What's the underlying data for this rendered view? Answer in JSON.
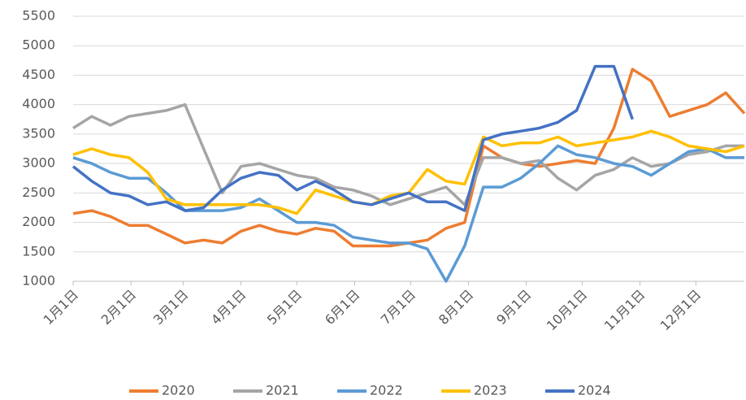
{
  "chart_data": {
    "type": "line",
    "x": [
      0,
      10,
      20,
      30,
      40,
      50,
      60,
      70,
      80,
      90,
      100,
      110,
      120,
      130,
      140,
      150,
      160,
      170,
      180,
      190,
      200,
      210,
      220,
      230,
      240,
      250,
      260,
      270,
      280,
      290,
      300,
      310,
      320,
      330,
      340,
      350,
      360
    ],
    "xlim": [
      0,
      360
    ],
    "xticks": [
      {
        "value": 0,
        "label": "1月1日"
      },
      {
        "value": 31,
        "label": "2月1日"
      },
      {
        "value": 59,
        "label": "3月1日"
      },
      {
        "value": 90,
        "label": "4月1日"
      },
      {
        "value": 120,
        "label": "5月1日"
      },
      {
        "value": 151,
        "label": "6月1日"
      },
      {
        "value": 181,
        "label": "7月1日"
      },
      {
        "value": 212,
        "label": "8月1日"
      },
      {
        "value": 243,
        "label": "9月1日"
      },
      {
        "value": 273,
        "label": "10月1日"
      },
      {
        "value": 304,
        "label": "11月1日"
      },
      {
        "value": 334,
        "label": "12月1日"
      }
    ],
    "ylim": [
      1000,
      5500
    ],
    "yticks": [
      1000,
      1500,
      2000,
      2500,
      3000,
      3500,
      4000,
      4500,
      5000,
      5500
    ],
    "grid": true,
    "legend": "bottom",
    "series": [
      {
        "name": "2020",
        "color": "#ed7d31",
        "values": [
          2150,
          2200,
          2100,
          1950,
          1950,
          1800,
          1650,
          1700,
          1650,
          1850,
          1950,
          1850,
          1800,
          1900,
          1850,
          1600,
          1600,
          1600,
          1650,
          1700,
          1900,
          2000,
          3300,
          3100,
          3000,
          2950,
          3000,
          3050,
          3000,
          3600,
          4600,
          4400,
          3800,
          3900,
          4000,
          4200,
          3850
        ]
      },
      {
        "name": "2021",
        "color": "#a5a5a5",
        "values": [
          3600,
          3800,
          3650,
          3800,
          3850,
          3900,
          4000,
          3250,
          2500,
          2950,
          3000,
          2900,
          2800,
          2750,
          2600,
          2550,
          2450,
          2300,
          2400,
          2500,
          2600,
          2300,
          3100,
          3100,
          3000,
          3050,
          2750,
          2550,
          2800,
          2900,
          3100,
          2950,
          3000,
          3150,
          3200,
          3300,
          3300
        ]
      },
      {
        "name": "2022",
        "color": "#5b9bd5",
        "values": [
          3100,
          3000,
          2850,
          2750,
          2750,
          2500,
          2200,
          2200,
          2200,
          2250,
          2400,
          2200,
          2000,
          2000,
          1950,
          1750,
          1700,
          1650,
          1650,
          1550,
          1000,
          1600,
          2600,
          2600,
          2750,
          3000,
          3300,
          3150,
          3100,
          3000,
          2950,
          2800,
          3000,
          3200,
          3250,
          3100,
          3100
        ]
      },
      {
        "name": "2023",
        "color": "#ffc000",
        "values": [
          3150,
          3250,
          3150,
          3100,
          2850,
          2400,
          2300,
          2300,
          2300,
          2300,
          2300,
          2250,
          2150,
          2550,
          2450,
          2350,
          2300,
          2450,
          2500,
          2900,
          2700,
          2650,
          3450,
          3300,
          3350,
          3350,
          3450,
          3300,
          3350,
          3400,
          3450,
          3550,
          3450,
          3300,
          3250,
          3200,
          3300
        ]
      },
      {
        "name": "2024",
        "color": "#4472c4",
        "values": [
          2950,
          2700,
          2500,
          2450,
          2300,
          2350,
          2200,
          2250,
          2550,
          2750,
          2850,
          2800,
          2550,
          2700,
          2550,
          2350,
          2300,
          2400,
          2500,
          2350,
          2350,
          2200,
          3400,
          3500,
          3550,
          3600,
          3700,
          3900,
          4650,
          4650,
          3750,
          null,
          null,
          null,
          null,
          null,
          null
        ]
      }
    ]
  }
}
